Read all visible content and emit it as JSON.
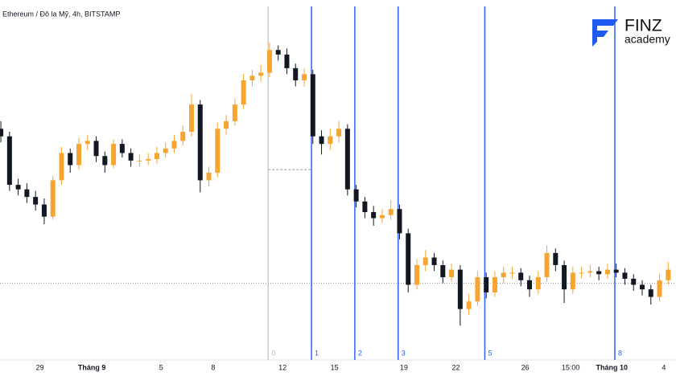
{
  "chart_data": {
    "type": "candlestick",
    "title": "Ethereum / Đô la Mỹ, 4h, BITSTAMP",
    "up_color": "#f7a531",
    "down_color": "#131722",
    "xlim": [
      -2.3,
      36.7
    ],
    "ylim": [
      284,
      520
    ],
    "xticks": [
      {
        "value": 0,
        "label": "29"
      },
      {
        "value": 3,
        "label": "Tháng 9"
      },
      {
        "value": 7,
        "label": "5"
      },
      {
        "value": 10,
        "label": "8"
      },
      {
        "value": 14,
        "label": "12"
      },
      {
        "value": 17,
        "label": "15"
      },
      {
        "value": 21,
        "label": "19"
      },
      {
        "value": 24,
        "label": "22"
      },
      {
        "value": 28,
        "label": "26"
      },
      {
        "value": 30.625,
        "label": "15:00"
      },
      {
        "value": 33,
        "label": "Tháng 10"
      },
      {
        "value": 36,
        "label": "4"
      }
    ],
    "x": [
      -2.25,
      -1.75,
      -1.25,
      -0.75,
      -0.25,
      0.25,
      0.75,
      1.25,
      1.75,
      2.25,
      2.75,
      3.25,
      3.75,
      4.25,
      4.75,
      5.25,
      5.75,
      6.25,
      6.75,
      7.25,
      7.75,
      8.25,
      8.75,
      9.25,
      9.75,
      10.25,
      10.75,
      11.25,
      11.75,
      12.25,
      12.75,
      13.25,
      13.75,
      14.25,
      14.75,
      15.25,
      15.75,
      16.25,
      16.75,
      17.25,
      17.75,
      18.25,
      18.75,
      19.25,
      19.75,
      20.25,
      20.75,
      21.25,
      21.75,
      22.25,
      22.75,
      23.25,
      23.75,
      24.25,
      24.75,
      25.25,
      25.75,
      26.25,
      26.75,
      27.25,
      27.75,
      28.25,
      28.75,
      29.25,
      29.75,
      30.25,
      30.75,
      31.25,
      31.75,
      32.25,
      32.75,
      33.25,
      33.75,
      34.25,
      34.75,
      35.25,
      35.75,
      36.25
    ],
    "open": [
      435,
      430,
      398,
      395,
      390,
      385,
      377,
      401,
      419,
      411,
      425,
      427,
      417,
      411,
      425,
      419,
      414,
      414,
      415,
      419,
      422,
      427,
      433,
      451,
      401,
      406,
      435,
      440,
      451,
      467,
      470,
      472,
      487,
      484,
      475,
      467,
      471,
      430,
      425,
      430,
      435,
      395,
      387,
      380,
      376,
      378,
      382,
      366,
      332,
      345,
      350,
      345,
      337,
      342,
      316,
      321,
      337,
      327,
      337,
      340,
      340,
      335,
      329,
      337,
      353,
      345,
      329,
      340,
      340,
      341,
      339,
      342,
      340,
      336,
      332,
      329,
      324,
      335
    ],
    "high": [
      440,
      433,
      402,
      399,
      394,
      389,
      404,
      423,
      422,
      429,
      431,
      430,
      420,
      428,
      428,
      422,
      418,
      419,
      423,
      426,
      431,
      437,
      458,
      454,
      410,
      439,
      444,
      455,
      471,
      474,
      477,
      492,
      490,
      488,
      478,
      475,
      474,
      434,
      435,
      440,
      438,
      398,
      390,
      384,
      382,
      388,
      385,
      369,
      349,
      355,
      353,
      348,
      346,
      345,
      326,
      341,
      340,
      341,
      344,
      344,
      343,
      338,
      341,
      358,
      356,
      348,
      344,
      344,
      345,
      344,
      346,
      346,
      343,
      339,
      335,
      332,
      339,
      347
    ],
    "low": [
      426,
      394,
      391,
      386,
      381,
      372,
      375,
      398,
      406,
      408,
      421,
      413,
      406,
      409,
      416,
      410,
      410,
      411,
      412,
      416,
      419,
      424,
      430,
      393,
      397,
      403,
      431,
      437,
      448,
      463,
      466,
      469,
      480,
      471,
      463,
      463,
      425,
      418,
      421,
      426,
      391,
      383,
      376,
      371,
      373,
      375,
      362,
      327,
      329,
      341,
      341,
      333,
      334,
      305,
      312,
      318,
      323,
      324,
      333,
      336,
      331,
      324,
      326,
      334,
      341,
      320,
      326,
      336,
      337,
      335,
      336,
      337,
      332,
      328,
      325,
      319,
      321,
      332
    ],
    "close": [
      430,
      398,
      395,
      390,
      385,
      377,
      401,
      419,
      411,
      425,
      427,
      417,
      411,
      425,
      419,
      414,
      414,
      415,
      419,
      422,
      427,
      433,
      451,
      401,
      406,
      435,
      440,
      451,
      467,
      470,
      472,
      487,
      484,
      475,
      467,
      471,
      430,
      425,
      430,
      435,
      395,
      387,
      380,
      376,
      378,
      382,
      366,
      332,
      345,
      350,
      345,
      337,
      342,
      316,
      321,
      337,
      327,
      337,
      340,
      340,
      335,
      329,
      337,
      353,
      345,
      329,
      340,
      340,
      341,
      339,
      342,
      340,
      336,
      332,
      329,
      324,
      335,
      342
    ],
    "fib_time_zones": {
      "start": 13.17,
      "unit": 2.5,
      "levels": [
        0,
        1,
        2,
        3,
        5,
        8
      ],
      "color": "#2962ff",
      "zero_color": "#b2b5be"
    },
    "hlines": [
      {
        "value": 333,
        "color": "#9598a1",
        "dash": "1 2"
      },
      {
        "value": 408,
        "x": [
          13.17,
          15.67
        ],
        "color": "#9598a1",
        "dash": "3 2"
      }
    ]
  },
  "logo": {
    "line1": "FINZ",
    "line2": "academy"
  }
}
